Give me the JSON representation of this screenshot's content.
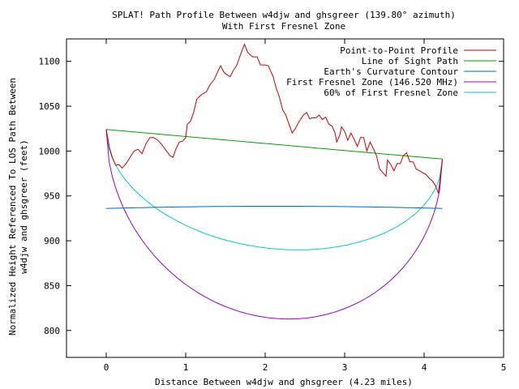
{
  "chart_data": {
    "type": "line",
    "title": "SPLAT! Path Profile Between w4djw and ghsgreer (139.80° azimuth)",
    "subtitle": "With First Fresnel Zone",
    "xlabel": "Distance Between w4djw and ghsgreer (4.23 miles)",
    "ylabel_line1": "Normalized Height Referenced To LOS Path Between",
    "ylabel_line2": "w4djw and ghsgreer (feet)",
    "xlim": [
      -0.5,
      5
    ],
    "ylim": [
      770,
      1125
    ],
    "xticks": [
      0,
      1,
      2,
      3,
      4,
      5
    ],
    "yticks": [
      800,
      850,
      900,
      950,
      1000,
      1050,
      1100
    ],
    "legend_position": "top-right",
    "grid": false,
    "series": [
      {
        "name": "Point-to-Point Profile",
        "color": "#cc0000",
        "points": [
          [
            0,
            1024
          ],
          [
            0.04,
            1004
          ],
          [
            0.08,
            992
          ],
          [
            0.12,
            984
          ],
          [
            0.16,
            985
          ],
          [
            0.2,
            981
          ],
          [
            0.25,
            986
          ],
          [
            0.3,
            993
          ],
          [
            0.35,
            1000
          ],
          [
            0.4,
            1002
          ],
          [
            0.45,
            997
          ],
          [
            0.5,
            1008
          ],
          [
            0.55,
            1015
          ],
          [
            0.6,
            1015
          ],
          [
            0.65,
            1012
          ],
          [
            0.7,
            1007
          ],
          [
            0.75,
            1001
          ],
          [
            0.8,
            995
          ],
          [
            0.84,
            993
          ],
          [
            0.88,
            1003
          ],
          [
            0.92,
            1010
          ],
          [
            0.96,
            1011
          ],
          [
            1.0,
            1015
          ],
          [
            1.02,
            1030
          ],
          [
            1.06,
            1033
          ],
          [
            1.1,
            1043
          ],
          [
            1.14,
            1058
          ],
          [
            1.2,
            1063
          ],
          [
            1.26,
            1066
          ],
          [
            1.3,
            1073
          ],
          [
            1.36,
            1080
          ],
          [
            1.4,
            1088
          ],
          [
            1.44,
            1095
          ],
          [
            1.48,
            1088
          ],
          [
            1.52,
            1085
          ],
          [
            1.56,
            1083
          ],
          [
            1.6,
            1090
          ],
          [
            1.64,
            1095
          ],
          [
            1.66,
            1100
          ],
          [
            1.7,
            1110
          ],
          [
            1.74,
            1119
          ],
          [
            1.78,
            1110
          ],
          [
            1.84,
            1105
          ],
          [
            1.9,
            1105
          ],
          [
            1.94,
            1096
          ],
          [
            2.0,
            1096
          ],
          [
            2.04,
            1095
          ],
          [
            2.1,
            1083
          ],
          [
            2.14,
            1070
          ],
          [
            2.18,
            1060
          ],
          [
            2.22,
            1046
          ],
          [
            2.26,
            1040
          ],
          [
            2.3,
            1030
          ],
          [
            2.34,
            1020
          ],
          [
            2.38,
            1025
          ],
          [
            2.42,
            1032
          ],
          [
            2.48,
            1040
          ],
          [
            2.52,
            1043
          ],
          [
            2.56,
            1036
          ],
          [
            2.6,
            1037
          ],
          [
            2.64,
            1037
          ],
          [
            2.68,
            1040
          ],
          [
            2.72,
            1035
          ],
          [
            2.76,
            1038
          ],
          [
            2.8,
            1030
          ],
          [
            2.84,
            1028
          ],
          [
            2.88,
            1020
          ],
          [
            2.9,
            1010
          ],
          [
            2.94,
            1018
          ],
          [
            2.96,
            1027
          ],
          [
            3.0,
            1022
          ],
          [
            3.04,
            1012
          ],
          [
            3.08,
            1020
          ],
          [
            3.12,
            1013
          ],
          [
            3.16,
            1005
          ],
          [
            3.2,
            1015
          ],
          [
            3.24,
            1015
          ],
          [
            3.28,
            1000
          ],
          [
            3.32,
            1010
          ],
          [
            3.36,
            1003
          ],
          [
            3.4,
            995
          ],
          [
            3.44,
            980
          ],
          [
            3.48,
            976
          ],
          [
            3.52,
            972
          ],
          [
            3.54,
            990
          ],
          [
            3.58,
            985
          ],
          [
            3.62,
            978
          ],
          [
            3.66,
            986
          ],
          [
            3.7,
            986
          ],
          [
            3.74,
            995
          ],
          [
            3.78,
            998
          ],
          [
            3.82,
            988
          ],
          [
            3.86,
            988
          ],
          [
            3.9,
            980
          ],
          [
            3.94,
            978
          ],
          [
            3.98,
            976
          ],
          [
            4.02,
            974
          ],
          [
            4.06,
            970
          ],
          [
            4.1,
            967
          ],
          [
            4.14,
            962
          ],
          [
            4.18,
            953
          ],
          [
            4.23,
            990
          ]
        ]
      },
      {
        "name": "Line of Sight Path",
        "color": "#00a000",
        "points": [
          [
            0,
            1024
          ],
          [
            4.23,
            991
          ]
        ]
      },
      {
        "name": "Earth's Curvature Contour",
        "color": "#0066cc",
        "curve": "curvature",
        "x_range": [
          0,
          4.23
        ],
        "y_end": 936,
        "y_mid": 938.5
      },
      {
        "name": "First Fresnel Zone (146.520 MHz)",
        "color": "#9900cc",
        "curve": "fresnel",
        "x_range": [
          0,
          4.23
        ],
        "start_y": 1024,
        "end_y": 991,
        "depth": 194
      },
      {
        "name": "60% of First Fresnel Zone",
        "color": "#00cccc",
        "curve": "fresnel",
        "x_range": [
          0,
          4.23
        ],
        "start_y": 1024,
        "end_y": 991,
        "depth": 116.5
      }
    ]
  }
}
